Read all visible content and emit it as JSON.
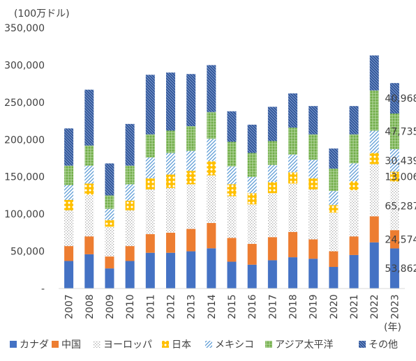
{
  "chart_data": {
    "type": "bar",
    "stacked": true,
    "unit_label": "(100万ドル)",
    "x_unit_label": "(年)",
    "categories": [
      "2007",
      "2008",
      "2009",
      "2010",
      "2011",
      "2012",
      "2013",
      "2014",
      "2015",
      "2016",
      "2017",
      "2018",
      "2019",
      "2020",
      "2021",
      "2022",
      "2023"
    ],
    "ylim": [
      0,
      350000
    ],
    "yticks": [
      0,
      50000,
      100000,
      150000,
      200000,
      250000,
      300000,
      350000
    ],
    "ytick_labels": [
      "-",
      "50,000",
      "100,000",
      "150,000",
      "200,000",
      "250,000",
      "300,000",
      "350,000"
    ],
    "legend_position": "bottom",
    "series": [
      {
        "name": "カナダ",
        "color": "#4472C4",
        "pattern": "solid",
        "values": [
          37000,
          46000,
          27000,
          37000,
          48000,
          48000,
          50000,
          54000,
          36000,
          32000,
          38000,
          42000,
          40000,
          29000,
          45000,
          62000,
          53862
        ]
      },
      {
        "name": "中国",
        "color": "#ED7D31",
        "pattern": "solid",
        "values": [
          20000,
          24000,
          16000,
          20000,
          25000,
          27000,
          30000,
          34000,
          32000,
          28000,
          31000,
          34000,
          26000,
          21000,
          25000,
          35000,
          24574
        ]
      },
      {
        "name": "ヨーロッパ",
        "color": "#A5A5A5",
        "pattern": "dots",
        "values": [
          48000,
          56000,
          40000,
          48000,
          60000,
          60000,
          60000,
          64000,
          56000,
          53000,
          59000,
          65000,
          67000,
          52000,
          62000,
          70000,
          65287
        ]
      },
      {
        "name": "日本",
        "color": "#FFC000",
        "pattern": "diamond",
        "values": [
          14000,
          15000,
          9000,
          13000,
          15000,
          18000,
          18000,
          19000,
          16000,
          15000,
          15000,
          15000,
          15000,
          10000,
          12000,
          15000,
          13006
        ]
      },
      {
        "name": "メキシコ",
        "color": "#5B9BD5",
        "pattern": "diag",
        "values": [
          20000,
          24000,
          15000,
          22000,
          28000,
          29000,
          27000,
          30000,
          24000,
          22000,
          23000,
          24000,
          25000,
          19000,
          24000,
          30000,
          30439
        ]
      },
      {
        "name": "アジア太平洋",
        "color": "#70AD47",
        "pattern": "grid",
        "values": [
          26000,
          27000,
          18000,
          25000,
          31000,
          30000,
          33000,
          36000,
          33000,
          32000,
          32000,
          36000,
          34000,
          30000,
          39000,
          54000,
          47735
        ]
      },
      {
        "name": "その他",
        "color": "#2F5597",
        "pattern": "revdiag",
        "values": [
          50000,
          75000,
          43000,
          56000,
          80000,
          78000,
          70000,
          63000,
          41000,
          38000,
          46000,
          46000,
          38000,
          27000,
          38000,
          47000,
          40968
        ]
      }
    ],
    "data_labels": {
      "category": "2023",
      "values": [
        "53,862",
        "24,574",
        "65,287",
        "13,006",
        "30,439",
        "47,735",
        "40,968"
      ]
    }
  }
}
